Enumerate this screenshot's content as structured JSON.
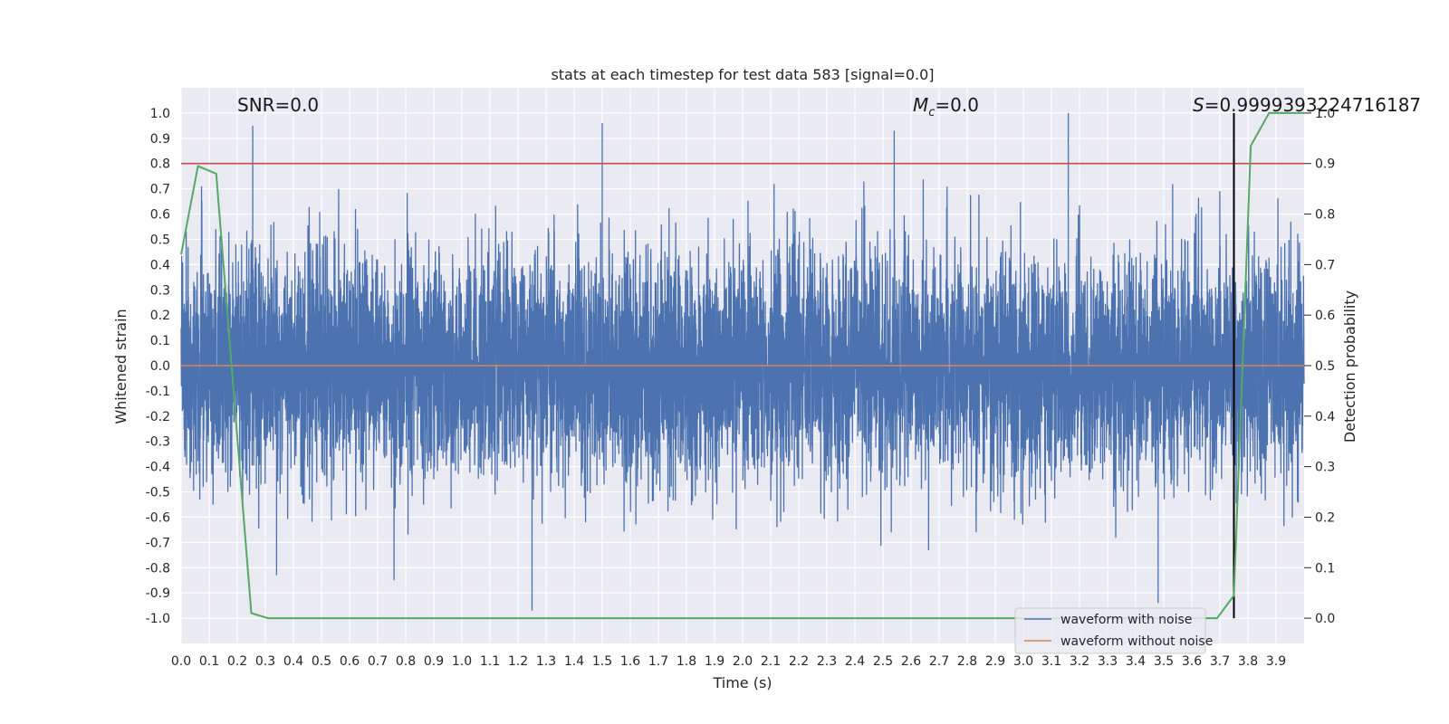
{
  "chart_data": {
    "type": "line",
    "title": "stats at each timestep for test data 583 [signal=0.0]",
    "xlabel": "Time (s)",
    "ylabel": "Whitened strain",
    "y2label": "Detection probability",
    "xlim": [
      0.0,
      4.0
    ],
    "ylim": [
      -1.1,
      1.1
    ],
    "y2lim": [
      -0.05,
      1.05
    ],
    "x_ticks": [
      0.0,
      0.1,
      0.2,
      0.3,
      0.4,
      0.5,
      0.6,
      0.7,
      0.8,
      0.9,
      1.0,
      1.1,
      1.2,
      1.3,
      1.4,
      1.5,
      1.6,
      1.7,
      1.8,
      1.9,
      2.0,
      2.1,
      2.2,
      2.3,
      2.4,
      2.5,
      2.6,
      2.7,
      2.8,
      2.9,
      3.0,
      3.1,
      3.2,
      3.3,
      3.4,
      3.5,
      3.6,
      3.7,
      3.8,
      3.9
    ],
    "x_tick_labels": [
      "0.0",
      "0.1",
      "0.2",
      "0.3",
      "0.4",
      "0.5",
      "0.6",
      "0.7",
      "0.8",
      "0.9",
      "1.0",
      "1.1",
      "1.2",
      "1.3",
      "1.4",
      "1.5",
      "1.6",
      "1.7",
      "1.8",
      "1.9",
      "2.0",
      "2.1",
      "2.2",
      "2.3",
      "2.4",
      "2.5",
      "2.6",
      "2.7",
      "2.8",
      "2.9",
      "3.0",
      "3.1",
      "3.2",
      "3.3",
      "3.4",
      "3.5",
      "3.6",
      "3.7",
      "3.8",
      "3.9"
    ],
    "y_ticks": [
      1.0,
      0.9,
      0.8,
      0.7,
      0.6,
      0.5,
      0.4,
      0.3,
      0.2,
      0.1,
      0.0,
      -0.1,
      -0.2,
      -0.3,
      -0.4,
      -0.5,
      -0.6,
      -0.7,
      -0.8,
      -0.9,
      -1.0
    ],
    "y_tick_labels": [
      "1.0",
      "0.9",
      "0.8",
      "0.7",
      "0.6",
      "0.5",
      "0.4",
      "0.3",
      "0.2",
      "0.1",
      "0.0",
      "-0.1",
      "-0.2",
      "-0.3",
      "-0.4",
      "-0.5",
      "-0.6",
      "-0.7",
      "-0.8",
      "-0.9",
      "-1.0"
    ],
    "y2_ticks": [
      1.0,
      0.9,
      0.8,
      0.7,
      0.6,
      0.5,
      0.4,
      0.3,
      0.2,
      0.1,
      0.0
    ],
    "y2_tick_labels": [
      "1.0",
      "0.9",
      "0.8",
      "0.7",
      "0.6",
      "0.5",
      "0.4",
      "0.3",
      "0.2",
      "0.1",
      "0.0"
    ],
    "grid": true,
    "legend_position": "bottom-right",
    "annotations": {
      "snr": "SNR=0.0",
      "mc_symbol": "M",
      "mc_sub": "c",
      "mc_value": "=0.0",
      "s_symbol": "S",
      "s_value": "=0.9999393224716187"
    },
    "series": [
      {
        "name": "waveform with noise",
        "color": "#4c72b0",
        "axis": "left",
        "description_note": "dense whitened-noise trace spanning roughly -1.0 to 1.0",
        "noise_amplitude_range": [
          -1.0,
          1.0
        ],
        "peaks": [
          {
            "x": 0.255,
            "y": 0.95
          },
          {
            "x": 1.5,
            "y": 0.96
          },
          {
            "x": 2.54,
            "y": 0.93
          },
          {
            "x": 3.16,
            "y": 1.0
          },
          {
            "x": 1.25,
            "y": -0.97
          },
          {
            "x": 3.48,
            "y": -0.94
          },
          {
            "x": 0.34,
            "y": -0.83
          }
        ]
      },
      {
        "name": "waveform without noise",
        "color": "#dd8452",
        "axis": "left",
        "x": [
          0.0,
          4.0
        ],
        "y": [
          0.0,
          0.0
        ]
      },
      {
        "name": "detection probability",
        "color": "#55a868",
        "axis": "right",
        "x": [
          0.0,
          0.06,
          0.125,
          0.25,
          0.31,
          0.5,
          1.0,
          2.0,
          3.0,
          3.69,
          3.75,
          3.81,
          3.875,
          3.94,
          4.0
        ],
        "y": [
          0.72,
          0.895,
          0.88,
          0.01,
          0.0,
          0.0,
          0.0,
          0.0,
          0.0,
          0.0,
          0.045,
          0.935,
          1.0,
          1.0,
          1.0
        ]
      }
    ],
    "threshold_lines": [
      {
        "axis": "right",
        "value": 0.9,
        "color": "#c44e52"
      }
    ],
    "vertical_marker": {
      "x": 3.75,
      "color": "#000000",
      "y2_range": [
        0.0,
        1.0
      ]
    }
  }
}
